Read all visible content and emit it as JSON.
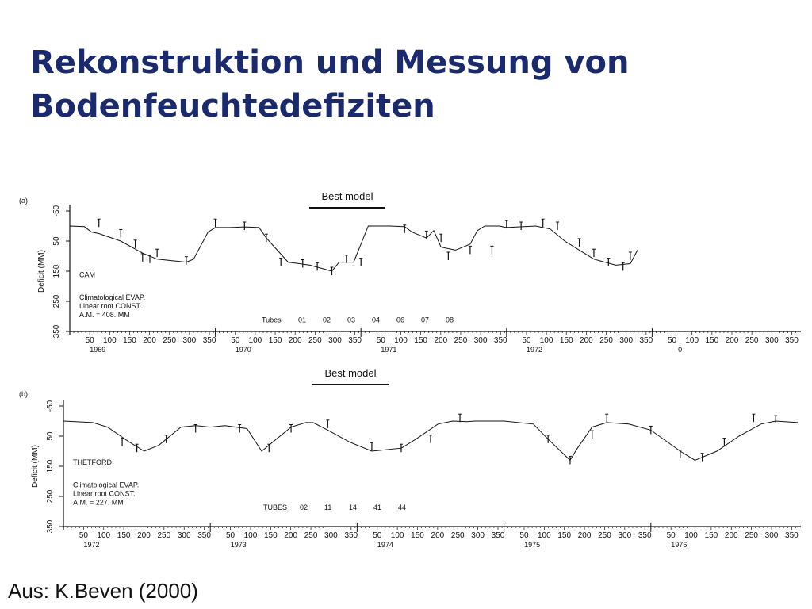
{
  "slide": {
    "title_line1": "Rekonstruktion und Messung von",
    "title_line2": "Bodenfeuchtedefiziten",
    "source": "Aus: K.Beven (2000)",
    "title_color": "#1a2a6c"
  },
  "chart_data": [
    {
      "type": "line",
      "panel_label": "(a)",
      "title": "Best model",
      "ylabel": "Deficit (MM)",
      "yticks": [
        -50,
        50,
        150,
        250,
        350
      ],
      "ylim": [
        -50,
        350
      ],
      "y_inverted": true,
      "day_ticks": [
        "50",
        "100",
        "150",
        "200",
        "250",
        "300",
        "350"
      ],
      "years": [
        "1969",
        "1970",
        "1971",
        "1972",
        "0"
      ],
      "site": "CAM",
      "notes": [
        "Climatological EVAP.",
        "Linear root CONST.",
        "A.M. = 408. MM"
      ],
      "tubes_label": "Tubes",
      "tubes": [
        "01",
        "02",
        "03",
        "04",
        "06",
        "07",
        "08"
      ],
      "model_x": [
        0,
        0.1,
        0.15,
        0.2,
        0.35,
        0.5,
        0.6,
        0.8,
        0.85,
        0.95,
        1.0,
        1.1,
        1.2,
        1.3,
        1.35,
        1.5,
        1.65,
        1.8,
        1.85,
        1.95,
        2.0,
        2.05,
        2.2,
        2.3,
        2.35,
        2.45,
        2.5,
        2.55,
        2.65,
        2.75,
        2.8,
        2.85,
        2.95,
        3.0,
        3.2,
        3.3,
        3.4,
        3.5,
        3.6,
        3.75,
        3.85,
        3.9
      ],
      "model_y": [
        0,
        2,
        20,
        25,
        50,
        90,
        110,
        120,
        110,
        20,
        5,
        5,
        3,
        5,
        40,
        120,
        130,
        150,
        120,
        120,
        60,
        0,
        0,
        2,
        20,
        40,
        15,
        70,
        80,
        60,
        15,
        0,
        0,
        5,
        0,
        10,
        50,
        80,
        110,
        130,
        125,
        80
      ],
      "obs_x": [
        0.2,
        0.35,
        0.45,
        0.5,
        0.55,
        0.6,
        0.8,
        1.0,
        1.2,
        1.35,
        1.45,
        1.6,
        1.7,
        1.8,
        1.9,
        2.0,
        2.3,
        2.45,
        2.55,
        2.6,
        2.75,
        2.9,
        3.0,
        3.1,
        3.25,
        3.35,
        3.5,
        3.6,
        3.7,
        3.8,
        3.85
      ],
      "obs_y": [
        -10,
        25,
        60,
        105,
        110,
        90,
        115,
        -10,
        0,
        40,
        120,
        125,
        135,
        150,
        110,
        120,
        10,
        30,
        40,
        100,
        80,
        80,
        -5,
        0,
        -10,
        0,
        55,
        90,
        120,
        135,
        100
      ]
    },
    {
      "type": "line",
      "panel_label": "(b)",
      "title": "Best model",
      "ylabel": "Deficit (MM)",
      "yticks": [
        -50,
        50,
        150,
        250,
        350
      ],
      "ylim": [
        -50,
        350
      ],
      "y_inverted": true,
      "day_ticks": [
        "50",
        "100",
        "150",
        "200",
        "250",
        "300",
        "350"
      ],
      "years": [
        "1972",
        "1973",
        "1974",
        "1975",
        "1976"
      ],
      "site": "THETFORD",
      "notes": [
        "Climatological EVAP.",
        "Linear root CONST.",
        "A.M. = 227. MM"
      ],
      "tubes_label": "TUBES",
      "tubes": [
        "02",
        "11",
        "14",
        "41",
        "44"
      ],
      "model_x": [
        0,
        0.2,
        0.3,
        0.45,
        0.55,
        0.65,
        0.8,
        0.9,
        1.0,
        1.1,
        1.25,
        1.35,
        1.45,
        1.55,
        1.65,
        1.7,
        1.8,
        1.95,
        2.1,
        2.3,
        2.4,
        2.55,
        2.65,
        2.75,
        2.8,
        3.0,
        3.2,
        3.3,
        3.45,
        3.5,
        3.6,
        3.7,
        3.85,
        4.0,
        4.2,
        4.3,
        4.45,
        4.6,
        4.75,
        4.85,
        5.0
      ],
      "model_y": [
        0,
        5,
        20,
        70,
        100,
        80,
        20,
        15,
        20,
        15,
        25,
        100,
        60,
        20,
        5,
        5,
        30,
        70,
        100,
        90,
        60,
        10,
        0,
        2,
        0,
        0,
        10,
        60,
        130,
        90,
        20,
        5,
        10,
        30,
        100,
        130,
        100,
        50,
        10,
        0,
        5
      ],
      "obs_x": [
        0.4,
        0.5,
        0.7,
        0.9,
        1.2,
        1.4,
        1.55,
        1.8,
        2.1,
        2.3,
        2.5,
        2.7,
        3.3,
        3.45,
        3.6,
        3.7,
        4.0,
        4.2,
        4.35,
        4.5,
        4.7,
        4.85
      ],
      "obs_y": [
        70,
        90,
        60,
        25,
        25,
        90,
        25,
        10,
        85,
        90,
        60,
        -10,
        60,
        130,
        45,
        -10,
        30,
        110,
        120,
        70,
        -10,
        -5
      ]
    }
  ]
}
